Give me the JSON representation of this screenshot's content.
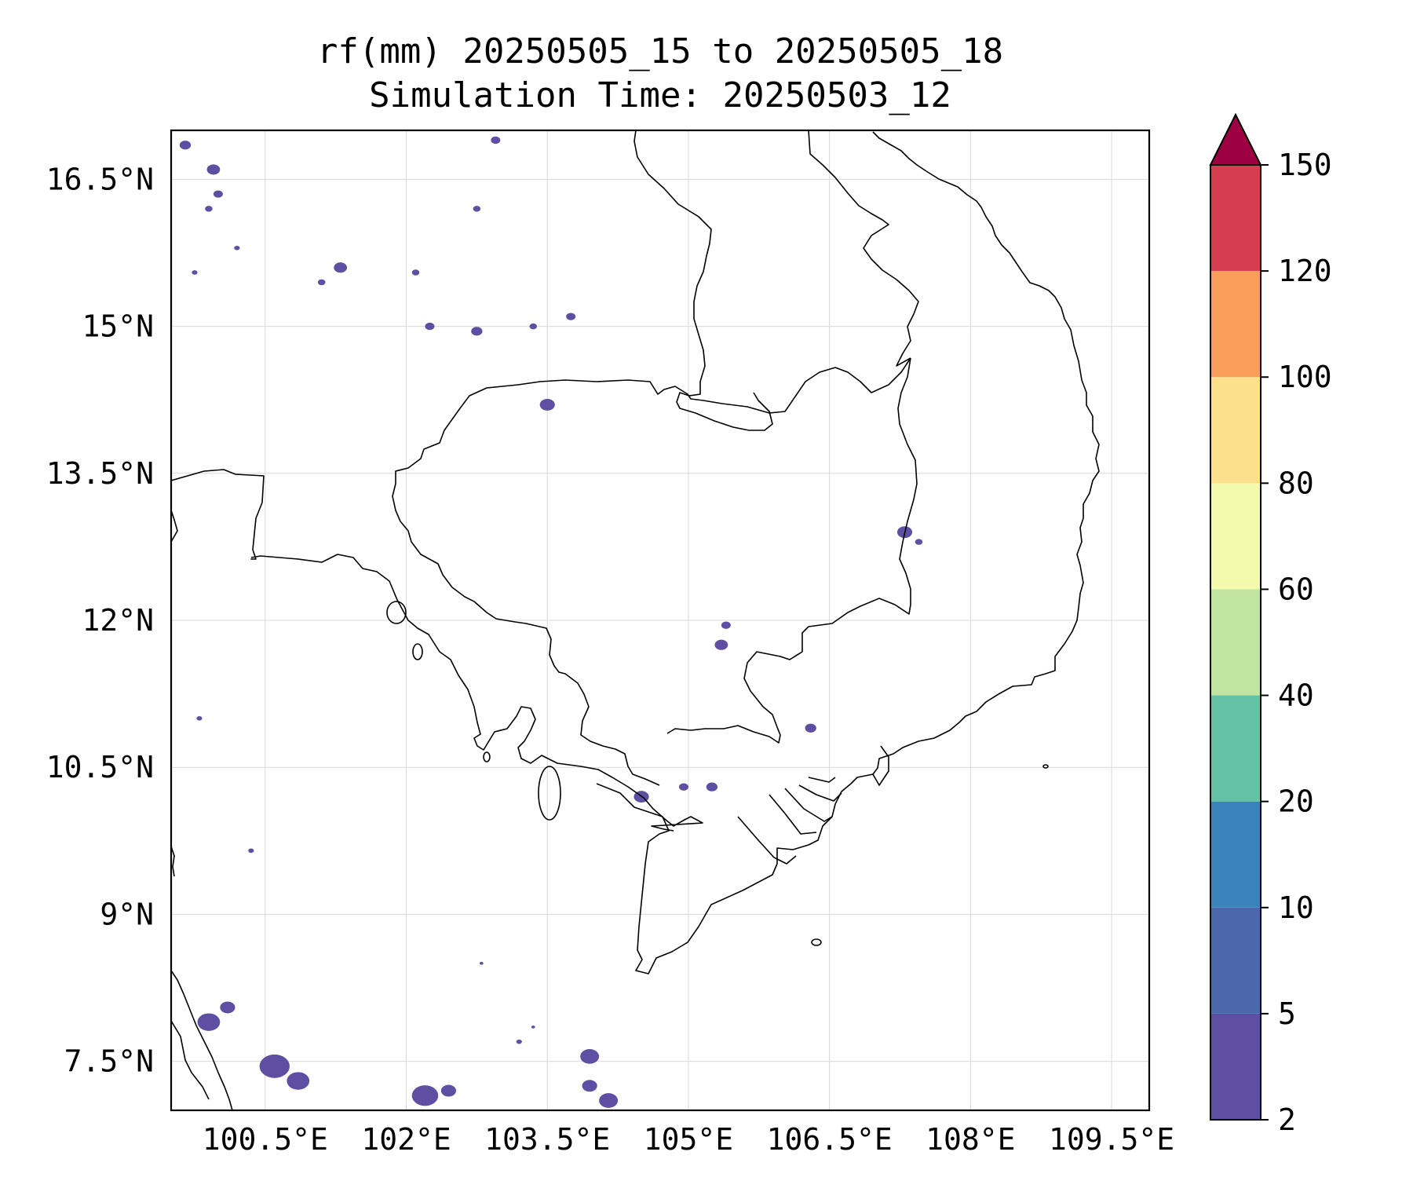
{
  "title": {
    "line1": "rf(mm) 20250505_15 to 20250505_18",
    "line2": "Simulation Time: 20250503_12"
  },
  "map": {
    "lon_range": [
      99.5,
      109.9
    ],
    "lat_range": [
      7.0,
      17.0
    ],
    "lon_ticks": [
      {
        "value": 100.5,
        "label": "100.5°E"
      },
      {
        "value": 102.0,
        "label": "102°E"
      },
      {
        "value": 103.5,
        "label": "103.5°E"
      },
      {
        "value": 105.0,
        "label": "105°E"
      },
      {
        "value": 106.5,
        "label": "106.5°E"
      },
      {
        "value": 108.0,
        "label": "108°E"
      },
      {
        "value": 109.5,
        "label": "109.5°E"
      }
    ],
    "lat_ticks": [
      {
        "value": 16.5,
        "label": "16.5°N"
      },
      {
        "value": 15.0,
        "label": "15°N"
      },
      {
        "value": 13.5,
        "label": "13.5°N"
      },
      {
        "value": 12.0,
        "label": "12°N"
      },
      {
        "value": 10.5,
        "label": "10.5°N"
      },
      {
        "value": 9.0,
        "label": "9°N"
      },
      {
        "value": 7.5,
        "label": "7.5°N"
      }
    ],
    "grid": true
  },
  "colorbar": {
    "levels": [
      {
        "value": 2,
        "label": "2"
      },
      {
        "value": 5,
        "label": "5"
      },
      {
        "value": 10,
        "label": "10"
      },
      {
        "value": 20,
        "label": "20"
      },
      {
        "value": 40,
        "label": "40"
      },
      {
        "value": 60,
        "label": "60"
      },
      {
        "value": 80,
        "label": "80"
      },
      {
        "value": 100,
        "label": "100"
      },
      {
        "value": 120,
        "label": "120"
      },
      {
        "value": 150,
        "label": "150"
      }
    ],
    "colors": [
      "#5e4fa2",
      "#4b68ad",
      "#3a84bb",
      "#66c2a5",
      "#bfe5a0",
      "#f3f9ad",
      "#fce08b",
      "#f99c5c",
      "#d53e4f"
    ],
    "extend_color": "#9e0142"
  },
  "rain": {
    "color": "#5e4fa2",
    "cells": [
      {
        "lon": 99.65,
        "lat": 16.85,
        "r": 0.06
      },
      {
        "lon": 99.95,
        "lat": 16.6,
        "r": 0.07
      },
      {
        "lon": 100.0,
        "lat": 16.35,
        "r": 0.05
      },
      {
        "lon": 99.9,
        "lat": 16.2,
        "r": 0.04
      },
      {
        "lon": 100.2,
        "lat": 15.8,
        "r": 0.03
      },
      {
        "lon": 99.75,
        "lat": 15.55,
        "r": 0.03
      },
      {
        "lon": 101.3,
        "lat": 15.6,
        "r": 0.07
      },
      {
        "lon": 101.1,
        "lat": 15.45,
        "r": 0.04
      },
      {
        "lon": 102.1,
        "lat": 15.55,
        "r": 0.04
      },
      {
        "lon": 102.75,
        "lat": 16.2,
        "r": 0.04
      },
      {
        "lon": 102.25,
        "lat": 15.0,
        "r": 0.05
      },
      {
        "lon": 102.75,
        "lat": 14.95,
        "r": 0.06
      },
      {
        "lon": 103.35,
        "lat": 15.0,
        "r": 0.04
      },
      {
        "lon": 103.75,
        "lat": 15.1,
        "r": 0.05
      },
      {
        "lon": 103.5,
        "lat": 14.2,
        "r": 0.08
      },
      {
        "lon": 102.95,
        "lat": 16.9,
        "r": 0.05
      },
      {
        "lon": 107.3,
        "lat": 12.9,
        "r": 0.08
      },
      {
        "lon": 107.45,
        "lat": 12.8,
        "r": 0.04
      },
      {
        "lon": 105.4,
        "lat": 11.95,
        "r": 0.05
      },
      {
        "lon": 105.35,
        "lat": 11.75,
        "r": 0.07
      },
      {
        "lon": 106.3,
        "lat": 10.9,
        "r": 0.06
      },
      {
        "lon": 104.5,
        "lat": 10.2,
        "r": 0.08
      },
      {
        "lon": 104.95,
        "lat": 10.3,
        "r": 0.05
      },
      {
        "lon": 105.25,
        "lat": 10.3,
        "r": 0.06
      },
      {
        "lon": 99.8,
        "lat": 11.0,
        "r": 0.03
      },
      {
        "lon": 100.35,
        "lat": 9.65,
        "r": 0.03
      },
      {
        "lon": 99.9,
        "lat": 7.9,
        "r": 0.12
      },
      {
        "lon": 100.1,
        "lat": 8.05,
        "r": 0.08
      },
      {
        "lon": 100.6,
        "lat": 7.45,
        "r": 0.16
      },
      {
        "lon": 100.85,
        "lat": 7.3,
        "r": 0.12
      },
      {
        "lon": 102.2,
        "lat": 7.15,
        "r": 0.14
      },
      {
        "lon": 102.45,
        "lat": 7.2,
        "r": 0.08
      },
      {
        "lon": 103.95,
        "lat": 7.55,
        "r": 0.1
      },
      {
        "lon": 103.95,
        "lat": 7.25,
        "r": 0.08
      },
      {
        "lon": 104.15,
        "lat": 7.1,
        "r": 0.1
      },
      {
        "lon": 103.2,
        "lat": 7.7,
        "r": 0.03
      },
      {
        "lon": 103.35,
        "lat": 7.85,
        "r": 0.02
      },
      {
        "lon": 102.8,
        "lat": 8.5,
        "r": 0.02
      }
    ]
  }
}
